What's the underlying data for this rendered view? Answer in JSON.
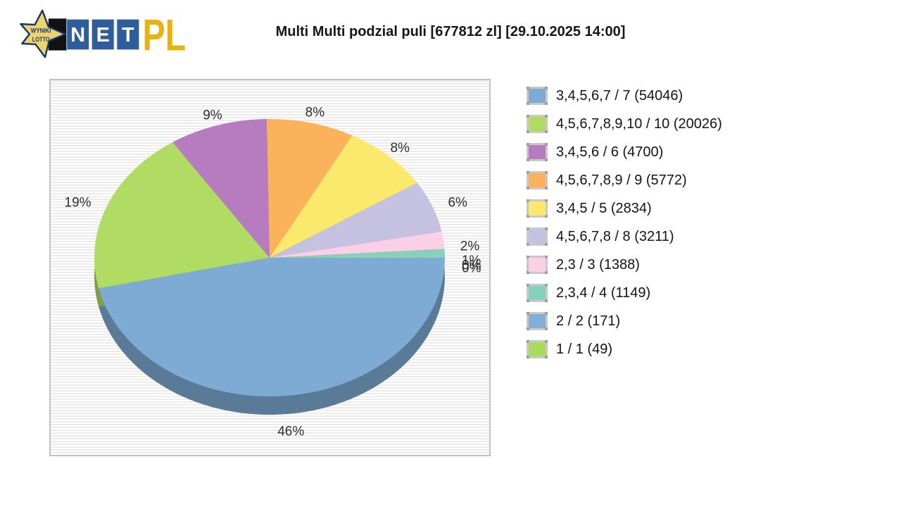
{
  "header": {
    "title": "Multi Multi podzial puli [677812 zl] [29.10.2025 14:00]",
    "logo": {
      "star_line1": "WYNIKI",
      "star_line2": "LOTTO",
      "net": [
        "N",
        "E",
        "T"
      ],
      "suffix": "PL",
      "colors": {
        "star_fill": "#ecd36b",
        "star_stroke": "#14356b",
        "tile_blue": "#2e5d9c",
        "suffix_gold": "#eab211"
      }
    }
  },
  "chart_data": {
    "type": "pie",
    "effect": "3d",
    "title": "Multi Multi podzial puli [677812 zl] [29.10.2025 14:00]",
    "pool": "677812 zl",
    "drawn_at": "29.10.2025 14:00",
    "legend_position": "right-outside",
    "background": "horizontal-gray-stripes",
    "start_angle": "3-oclock-clockwise",
    "slices": [
      {
        "label": "3,4,5,6,7 / 7 (54046)",
        "tier": "3,4,5,6,7 / 7",
        "winners": 54046,
        "percent": 46,
        "percent_label": "46%",
        "color": "#7dabd3"
      },
      {
        "label": "4,5,6,7,8,9,10 / 10 (20026)",
        "tier": "4,5,6,7,8,9,10 / 10",
        "winners": 20026,
        "percent": 19,
        "percent_label": "19%",
        "color": "#b1dc63"
      },
      {
        "label": "3,4,5,6 / 6 (4700)",
        "tier": "3,4,5,6 / 6",
        "winners": 4700,
        "percent": 9,
        "percent_label": "9%",
        "color": "#b77cbf"
      },
      {
        "label": "4,5,6,7,8,9 / 9 (5772)",
        "tier": "4,5,6,7,8,9 / 9",
        "winners": 5772,
        "percent": 8,
        "percent_label": "8%",
        "color": "#fcb25a"
      },
      {
        "label": "3,4,5 / 5 (2834)",
        "tier": "3,4,5 / 5",
        "winners": 2834,
        "percent": 8,
        "percent_label": "8%",
        "color": "#fae96c"
      },
      {
        "label": "4,5,6,7,8 / 8 (3211)",
        "tier": "4,5,6,7,8 / 8",
        "winners": 3211,
        "percent": 6,
        "percent_label": "6%",
        "color": "#c5c1e0"
      },
      {
        "label": "2,3 / 3 (1388)",
        "tier": "2,3 / 3",
        "winners": 1388,
        "percent": 2,
        "percent_label": "2%",
        "color": "#fbd0e6"
      },
      {
        "label": "2,3,4 / 4 (1149)",
        "tier": "2,3,4 / 4",
        "winners": 1149,
        "percent": 1,
        "percent_label": "1%",
        "color": "#87d1bc"
      },
      {
        "label": "2 / 2 (171)",
        "tier": "2 / 2",
        "winners": 171,
        "percent": 0,
        "percent_label": "0%",
        "color": "#83afd7"
      },
      {
        "label": "1 / 1 (49)",
        "tier": "1 / 1",
        "winners": 49,
        "percent": 0,
        "percent_label": "0%",
        "color": "#aadb5f"
      }
    ]
  }
}
